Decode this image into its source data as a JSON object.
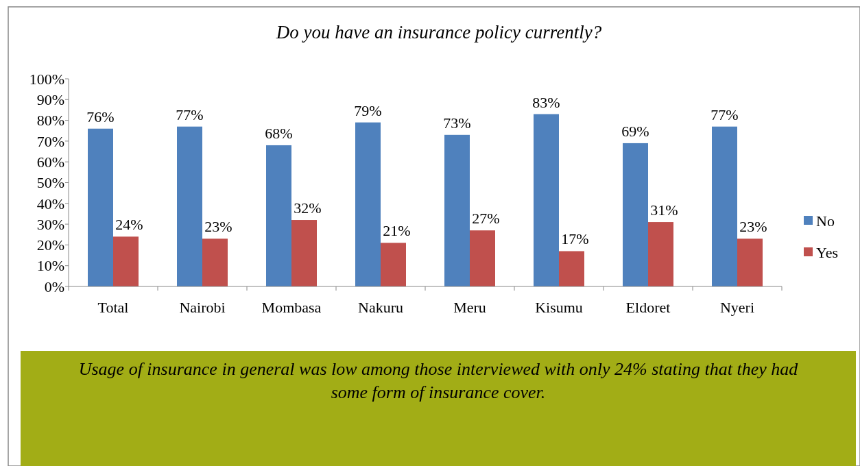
{
  "chart_data": {
    "type": "bar",
    "title": "Do you have an insurance policy currently?",
    "categories": [
      "Total",
      "Nairobi",
      "Mombasa",
      "Nakuru",
      "Meru",
      "Kisumu",
      "Eldoret",
      "Nyeri"
    ],
    "series": [
      {
        "name": "No",
        "color": "#4f81bd",
        "values": [
          76,
          77,
          68,
          79,
          73,
          83,
          69,
          77
        ],
        "value_labels": [
          "76%",
          "77%",
          "68%",
          "79%",
          "73%",
          "83%",
          "69%",
          "77%"
        ]
      },
      {
        "name": "Yes",
        "color": "#c0504d",
        "values": [
          24,
          23,
          32,
          21,
          27,
          17,
          31,
          23
        ],
        "value_labels": [
          "24%",
          "23%",
          "32%",
          "21%",
          "27%",
          "17%",
          "31%",
          "23%"
        ]
      }
    ],
    "ylim": [
      0,
      100
    ],
    "yticks": [
      {
        "value": 0,
        "label": "0%"
      },
      {
        "value": 10,
        "label": "10%"
      },
      {
        "value": 20,
        "label": "20%"
      },
      {
        "value": 30,
        "label": "30%"
      },
      {
        "value": 40,
        "label": "40%"
      },
      {
        "value": 50,
        "label": "50%"
      },
      {
        "value": 60,
        "label": "60%"
      },
      {
        "value": 70,
        "label": "70%"
      },
      {
        "value": 80,
        "label": "80%"
      },
      {
        "value": 90,
        "label": "90%"
      },
      {
        "value": 100,
        "label": "100%"
      }
    ],
    "legend": "right",
    "annotations": [
      "Usage of insurance in general was low among those interviewed with only 24% stating that they had some form of insurance cover."
    ]
  }
}
